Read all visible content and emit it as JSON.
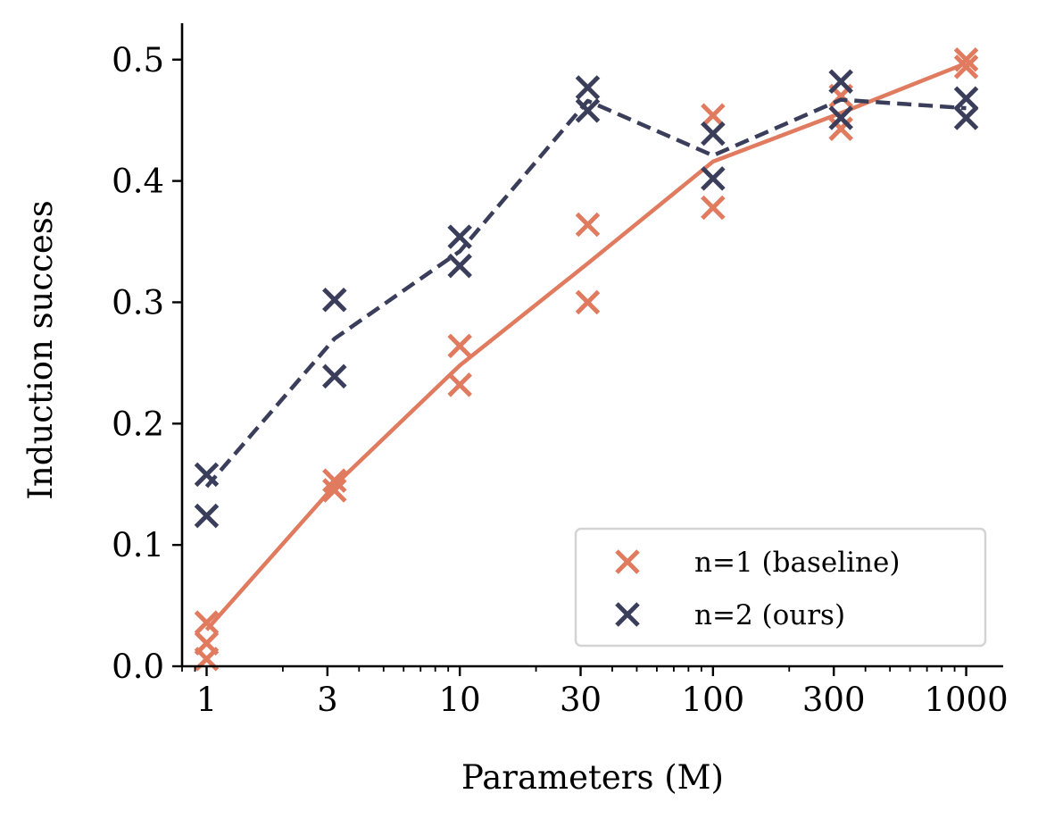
{
  "chart_data": {
    "type": "scatter",
    "title": "",
    "xlabel": "Parameters (M)",
    "ylabel": "Induction success",
    "xscale": "log",
    "xlim": [
      0.8,
      1400
    ],
    "ylim": [
      0,
      0.53
    ],
    "x_ticks": [
      1,
      3,
      10,
      30,
      100,
      300,
      1000
    ],
    "x_tick_labels": [
      "1",
      "3",
      "10",
      "30",
      "100",
      "300",
      "1000"
    ],
    "y_ticks": [
      0,
      0.1,
      0.2,
      0.3,
      0.4,
      0.5
    ],
    "y_tick_labels": [
      "0.0",
      "0.1",
      "0.2",
      "0.3",
      "0.4",
      "0.5"
    ],
    "grid": false,
    "legend_position": "lower-right",
    "series": [
      {
        "name": "n=1 (baseline)",
        "color": "#e07b5f",
        "marker": "x",
        "line_style": "solid",
        "points": [
          {
            "x": 1,
            "y": 0.036
          },
          {
            "x": 1,
            "y": 0.019
          },
          {
            "x": 1,
            "y": 0.006
          },
          {
            "x": 3.2,
            "y": 0.153
          },
          {
            "x": 3.2,
            "y": 0.145
          },
          {
            "x": 10,
            "y": 0.264
          },
          {
            "x": 10,
            "y": 0.232
          },
          {
            "x": 32,
            "y": 0.364
          },
          {
            "x": 32,
            "y": 0.3
          },
          {
            "x": 100,
            "y": 0.454
          },
          {
            "x": 100,
            "y": 0.378
          },
          {
            "x": 320,
            "y": 0.47
          },
          {
            "x": 320,
            "y": 0.443
          },
          {
            "x": 1000,
            "y": 0.5
          },
          {
            "x": 1000,
            "y": 0.494
          }
        ],
        "trend": [
          {
            "x": 1,
            "y": 0.03
          },
          {
            "x": 3.2,
            "y": 0.149
          },
          {
            "x": 10,
            "y": 0.248
          },
          {
            "x": 32,
            "y": 0.332
          },
          {
            "x": 100,
            "y": 0.416
          },
          {
            "x": 320,
            "y": 0.456
          },
          {
            "x": 1000,
            "y": 0.497
          }
        ]
      },
      {
        "name": "n=2 (ours)",
        "color": "#3b3e5a",
        "marker": "x",
        "line_style": "dashed",
        "points": [
          {
            "x": 1,
            "y": 0.158
          },
          {
            "x": 1,
            "y": 0.124
          },
          {
            "x": 3.2,
            "y": 0.302
          },
          {
            "x": 3.2,
            "y": 0.239
          },
          {
            "x": 10,
            "y": 0.354
          },
          {
            "x": 10,
            "y": 0.33
          },
          {
            "x": 32,
            "y": 0.477
          },
          {
            "x": 32,
            "y": 0.458
          },
          {
            "x": 100,
            "y": 0.439
          },
          {
            "x": 100,
            "y": 0.402
          },
          {
            "x": 320,
            "y": 0.482
          },
          {
            "x": 320,
            "y": 0.452
          },
          {
            "x": 1000,
            "y": 0.468
          },
          {
            "x": 1000,
            "y": 0.452
          }
        ],
        "trend": [
          {
            "x": 1,
            "y": 0.148
          },
          {
            "x": 3.2,
            "y": 0.27
          },
          {
            "x": 10,
            "y": 0.342
          },
          {
            "x": 32,
            "y": 0.466
          },
          {
            "x": 100,
            "y": 0.421
          },
          {
            "x": 320,
            "y": 0.467
          },
          {
            "x": 1000,
            "y": 0.46
          }
        ]
      }
    ]
  }
}
